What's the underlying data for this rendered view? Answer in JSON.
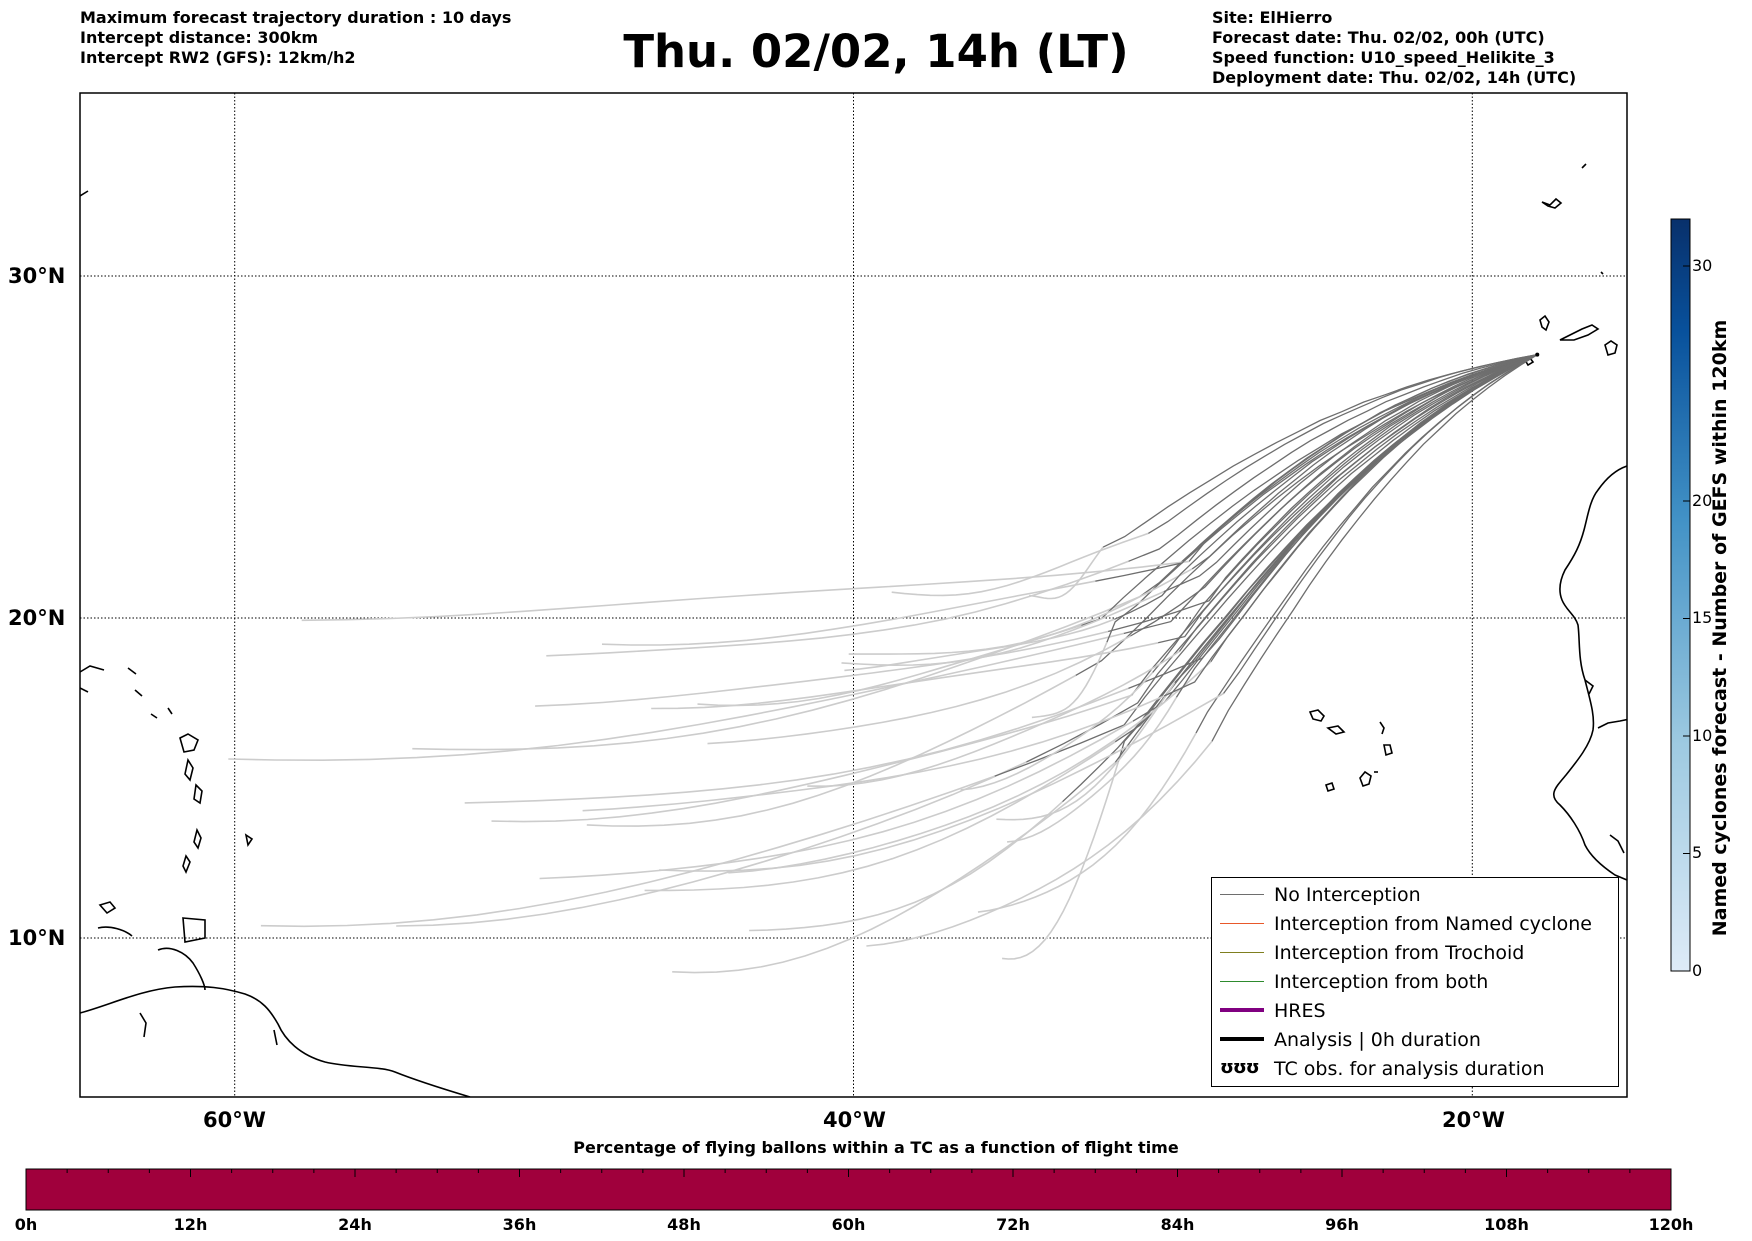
{
  "header_left": [
    "Maximum forecast trajectory duration : 10 days",
    "Intercept distance: 300km",
    "Intercept RW2 (GFS):  12km/h2"
  ],
  "title": "Thu. 02/02, 14h (LT)",
  "header_right": [
    "Site: ElHierro",
    "Forecast date: Thu. 02/02, 00h (UTC)",
    "Speed function: U10_speed_Helikite_3",
    "Deployment date: Thu. 02/02, 14h (UTC)"
  ],
  "map": {
    "lon_range": [
      -65,
      15
    ],
    "lat_range": [
      5,
      34
    ],
    "lon_labels": [
      "60°W",
      "40°W",
      "20°W"
    ],
    "lon_ticks": [
      -60,
      -40,
      -20
    ],
    "lat_labels": [
      "30°N",
      "20°N",
      "10°N"
    ],
    "lat_ticks": [
      30,
      20,
      10
    ],
    "grid": "dotted",
    "launch_site": {
      "lon": -17.9,
      "lat": 27.7
    },
    "colors": {
      "no_interception_recent": "#6e6e6e",
      "no_interception_old": "#cccccc",
      "named_cyclone": "#e8582a",
      "trochoid": "#7f7f1f",
      "both": "#2e8b2e",
      "hres": "#800080",
      "analysis": "#000000"
    }
  },
  "legend": {
    "items": [
      {
        "label": "No Interception",
        "color": "#6e6e6e",
        "style": "thin"
      },
      {
        "label": "Interception from Named cyclone",
        "color": "#e8582a",
        "style": "thin"
      },
      {
        "label": "Interception from Trochoid",
        "color": "#7f7f1f",
        "style": "thin"
      },
      {
        "label": "Interception from both",
        "color": "#2e8b2e",
        "style": "thin"
      },
      {
        "label": "HRES",
        "color": "#800080",
        "style": "thick"
      },
      {
        "label": "Analysis | 0h duration",
        "color": "#000000",
        "style": "thick"
      },
      {
        "label": "TC obs. for analysis duration",
        "color": "#000000",
        "style": "glyph",
        "glyph": "ʊʊʊ"
      }
    ]
  },
  "colorbar_vertical": {
    "title": "Named cyclones forecast - Number of GEFS within 120km",
    "range": [
      0,
      32
    ],
    "ticks": [
      0,
      5,
      10,
      15,
      20,
      30
    ],
    "colors_from_to": [
      "#deebf7",
      "#08306b"
    ]
  },
  "colorbar_horizontal": {
    "title": "Percentage of flying ballons within a TC as a function of flight time",
    "fill": "#a0003c",
    "ticks": [
      "0h",
      "12h",
      "24h",
      "36h",
      "48h",
      "60h",
      "72h",
      "84h",
      "96h",
      "108h",
      "120h"
    ],
    "minor_per_major": 4
  }
}
